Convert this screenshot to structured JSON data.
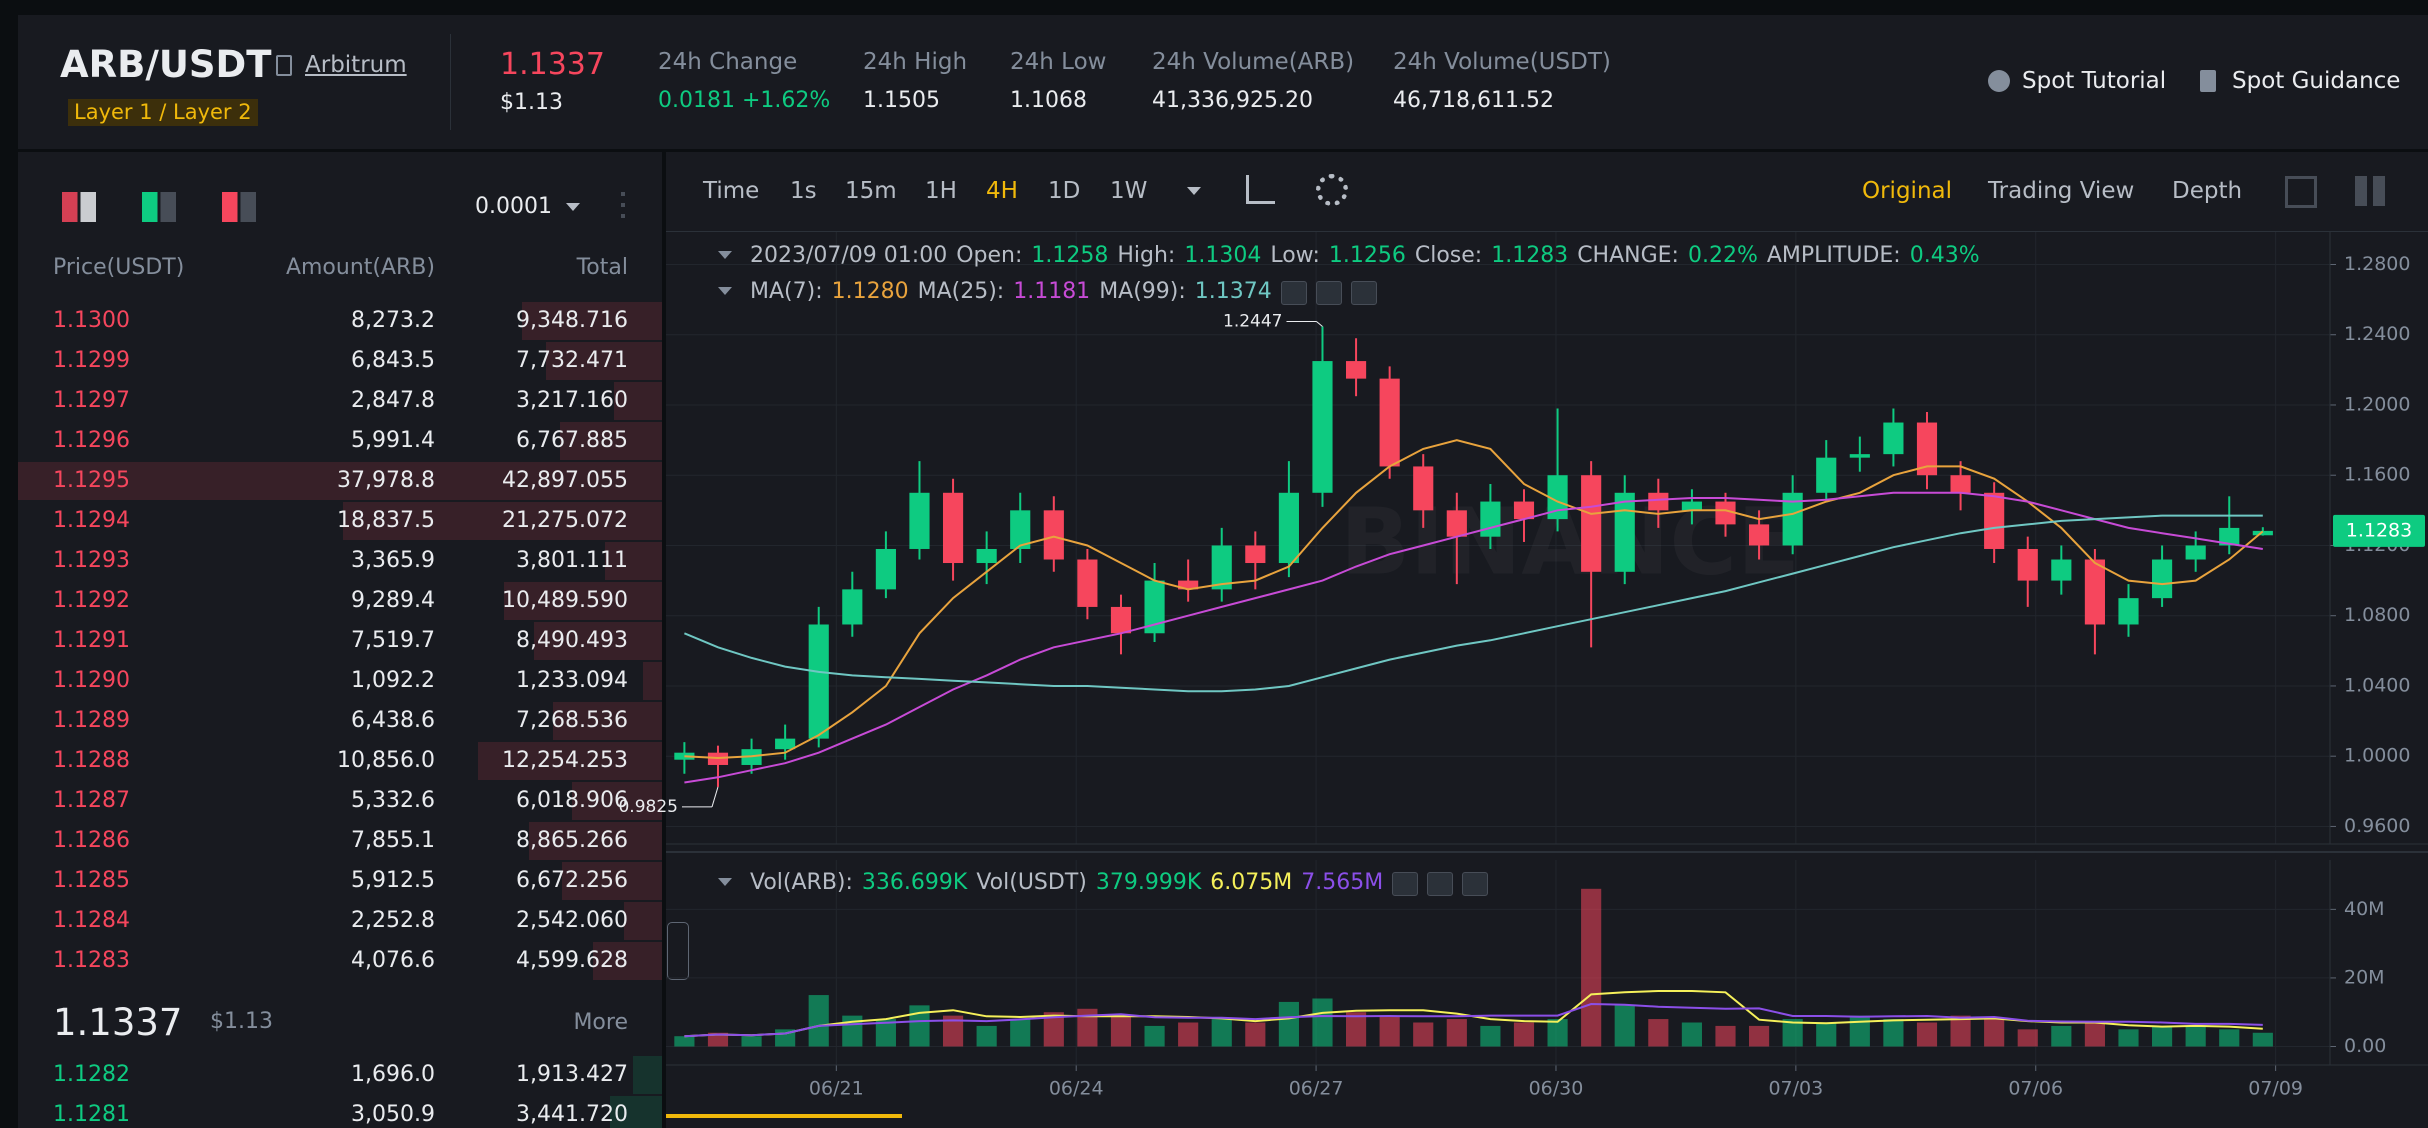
{
  "header": {
    "pair": "ARB/USDT",
    "network": "Arbitrum",
    "tag": "Layer 1 / Layer 2",
    "price": "1.1337",
    "price_usd": "$1.13",
    "stats": [
      {
        "label": "24h Change",
        "value": "0.0181 +1.62%",
        "value_color": "#0ecb81"
      },
      {
        "label": "24h High",
        "value": "1.1505"
      },
      {
        "label": "24h Low",
        "value": "1.1068"
      },
      {
        "label": "24h Volume(ARB)",
        "value": "41,336,925.20"
      },
      {
        "label": "24h Volume(USDT)",
        "value": "46,718,611.52"
      }
    ],
    "links": [
      "Spot Tutorial",
      "Spot Guidance"
    ]
  },
  "orderbook": {
    "precision": "0.0001",
    "columns": [
      "Price(USDT)",
      "Amount(ARB)",
      "Total"
    ],
    "asks": [
      [
        "1.1300",
        "8,273.2",
        "9,348.716"
      ],
      [
        "1.1299",
        "6,843.5",
        "7,732.471"
      ],
      [
        "1.1297",
        "2,847.8",
        "3,217.160"
      ],
      [
        "1.1296",
        "5,991.4",
        "6,767.885"
      ],
      [
        "1.1295",
        "37,978.8",
        "42,897.055"
      ],
      [
        "1.1294",
        "18,837.5",
        "21,275.072"
      ],
      [
        "1.1293",
        "3,365.9",
        "3,801.111"
      ],
      [
        "1.1292",
        "9,289.4",
        "10,489.590"
      ],
      [
        "1.1291",
        "7,519.7",
        "8,490.493"
      ],
      [
        "1.1290",
        "1,092.2",
        "1,233.094"
      ],
      [
        "1.1289",
        "6,438.6",
        "7,268.536"
      ],
      [
        "1.1288",
        "10,856.0",
        "12,254.253"
      ],
      [
        "1.1287",
        "5,332.6",
        "6,018.906"
      ],
      [
        "1.1286",
        "7,855.1",
        "8,865.266"
      ],
      [
        "1.1285",
        "5,912.5",
        "6,672.256"
      ],
      [
        "1.1284",
        "2,252.8",
        "2,542.060"
      ],
      [
        "1.1283",
        "4,076.6",
        "4,599.628"
      ]
    ],
    "mid": {
      "price": "1.1337",
      "usd": "$1.13",
      "more": "More"
    },
    "bids": [
      [
        "1.1282",
        "1,696.0",
        "1,913.427"
      ],
      [
        "1.1281",
        "3,050.9",
        "3,441.720"
      ]
    ]
  },
  "toolbar": {
    "intervals": [
      "Time",
      "1s",
      "15m",
      "1H",
      "4H",
      "1D",
      "1W"
    ],
    "active_interval": 4,
    "views": [
      "Original",
      "Trading View",
      "Depth"
    ],
    "active_view": 0
  },
  "info": {
    "ohlc": [
      {
        "text": "2023/07/09 01:00"
      },
      {
        "text": "Open:"
      },
      {
        "text": "1.1258",
        "color": "#0ecb81"
      },
      {
        "text": "High:"
      },
      {
        "text": "1.1304",
        "color": "#0ecb81"
      },
      {
        "text": "Low:"
      },
      {
        "text": "1.1256",
        "color": "#0ecb81"
      },
      {
        "text": "Close:"
      },
      {
        "text": "1.1283",
        "color": "#0ecb81"
      },
      {
        "text": "CHANGE:"
      },
      {
        "text": "0.22%",
        "color": "#0ecb81"
      },
      {
        "text": "AMPLITUDE:"
      },
      {
        "text": "0.43%",
        "color": "#0ecb81"
      }
    ],
    "ma": [
      {
        "text": "MA(7):"
      },
      {
        "text": "1.1280",
        "color": "#e8a33d"
      },
      {
        "text": "MA(25):"
      },
      {
        "text": "1.1181",
        "color": "#c74bd6"
      },
      {
        "text": "MA(99):"
      },
      {
        "text": "1.1374",
        "color": "#6fc7c3"
      }
    ],
    "vol": [
      {
        "text": "Vol(ARB):"
      },
      {
        "text": "336.699K",
        "color": "#0ecb81"
      },
      {
        "text": "Vol(USDT)"
      },
      {
        "text": "379.999K",
        "color": "#0ecb81"
      },
      {
        "text": "6.075M",
        "color": "#f5f05a"
      },
      {
        "text": "7.565M",
        "color": "#8b4fe8"
      }
    ]
  },
  "chart_data": [
    {
      "type": "candlestick",
      "watermark": "BINANCE",
      "up_color": "#0ecb81",
      "down_color": "#f6465d",
      "xlim": [
        18.87,
        39.68
      ],
      "xticks": [
        21,
        24,
        27,
        30,
        33,
        36,
        39
      ],
      "ylim": [
        0.95,
        1.2985
      ],
      "yticks": [
        {
          "value": 0.96,
          "label": "0.9600"
        },
        {
          "value": 1.0,
          "label": "1.0000"
        },
        {
          "value": 1.04,
          "label": "1.0400"
        },
        {
          "value": 1.08,
          "label": "1.0800"
        },
        {
          "value": 1.12,
          "label": "1.1200"
        },
        {
          "value": 1.16,
          "label": "1.1600"
        },
        {
          "value": 1.2,
          "label": "1.2000"
        },
        {
          "value": 1.24,
          "label": "1.2400"
        },
        {
          "value": 1.28,
          "label": "1.2800"
        }
      ],
      "grid": true,
      "x": [
        19.1,
        19.52,
        19.94,
        20.36,
        20.78,
        21.2,
        21.62,
        22.04,
        22.46,
        22.88,
        23.3,
        23.72,
        24.14,
        24.56,
        24.98,
        25.4,
        25.82,
        26.24,
        26.66,
        27.08,
        27.5,
        27.92,
        28.34,
        28.76,
        29.18,
        29.6,
        30.02,
        30.44,
        30.86,
        31.28,
        31.7,
        32.12,
        32.54,
        32.96,
        33.38,
        33.8,
        34.22,
        34.64,
        35.06,
        35.48,
        35.9,
        36.32,
        36.74,
        37.16,
        37.58,
        38.0,
        38.42,
        38.84
      ],
      "open": [
        0.998,
        1.002,
        0.995,
        1.004,
        1.01,
        1.075,
        1.095,
        1.118,
        1.15,
        1.11,
        1.118,
        1.14,
        1.112,
        1.085,
        1.07,
        1.1,
        1.095,
        1.12,
        1.11,
        1.15,
        1.225,
        1.215,
        1.165,
        1.14,
        1.125,
        1.145,
        1.135,
        1.16,
        1.105,
        1.15,
        1.14,
        1.145,
        1.132,
        1.12,
        1.15,
        1.17,
        1.172,
        1.19,
        1.16,
        1.15,
        1.118,
        1.1,
        1.112,
        1.075,
        1.09,
        1.112,
        1.12,
        1.1258
      ],
      "high": [
        1.008,
        1.006,
        1.01,
        1.018,
        1.085,
        1.105,
        1.128,
        1.168,
        1.158,
        1.128,
        1.15,
        1.148,
        1.118,
        1.092,
        1.11,
        1.112,
        1.13,
        1.128,
        1.168,
        1.2447,
        1.238,
        1.222,
        1.172,
        1.15,
        1.155,
        1.152,
        1.198,
        1.168,
        1.16,
        1.158,
        1.152,
        1.15,
        1.14,
        1.16,
        1.18,
        1.182,
        1.198,
        1.196,
        1.168,
        1.156,
        1.125,
        1.12,
        1.118,
        1.098,
        1.12,
        1.128,
        1.148,
        1.1304
      ],
      "low": [
        0.99,
        0.9825,
        0.99,
        0.998,
        1.005,
        1.068,
        1.09,
        1.112,
        1.1,
        1.098,
        1.11,
        1.105,
        1.078,
        1.058,
        1.065,
        1.088,
        1.088,
        1.095,
        1.102,
        1.142,
        1.205,
        1.158,
        1.13,
        1.098,
        1.118,
        1.122,
        1.128,
        1.062,
        1.098,
        1.13,
        1.132,
        1.125,
        1.112,
        1.115,
        1.145,
        1.162,
        1.165,
        1.152,
        1.14,
        1.11,
        1.085,
        1.092,
        1.058,
        1.068,
        1.085,
        1.105,
        1.115,
        1.1256
      ],
      "close": [
        1.002,
        0.995,
        1.004,
        1.01,
        1.075,
        1.095,
        1.118,
        1.15,
        1.11,
        1.118,
        1.14,
        1.112,
        1.085,
        1.07,
        1.1,
        1.095,
        1.12,
        1.11,
        1.15,
        1.225,
        1.215,
        1.165,
        1.14,
        1.125,
        1.145,
        1.135,
        1.16,
        1.105,
        1.15,
        1.14,
        1.145,
        1.132,
        1.12,
        1.15,
        1.17,
        1.172,
        1.19,
        1.16,
        1.15,
        1.118,
        1.1,
        1.112,
        1.075,
        1.09,
        1.112,
        1.12,
        1.13,
        1.1283
      ],
      "series": [
        {
          "color": "#e8a33d",
          "values": [
            1.0,
            0.999,
            1.0,
            1.002,
            1.012,
            1.025,
            1.04,
            1.07,
            1.09,
            1.105,
            1.12,
            1.125,
            1.12,
            1.11,
            1.1,
            1.095,
            1.098,
            1.1,
            1.108,
            1.13,
            1.15,
            1.165,
            1.175,
            1.18,
            1.175,
            1.155,
            1.145,
            1.138,
            1.14,
            1.138,
            1.14,
            1.14,
            1.135,
            1.138,
            1.145,
            1.15,
            1.16,
            1.165,
            1.165,
            1.158,
            1.145,
            1.13,
            1.11,
            1.1,
            1.098,
            1.1,
            1.112,
            1.128
          ]
        },
        {
          "color": "#c74bd6",
          "values": [
            0.985,
            0.988,
            0.992,
            0.996,
            1.002,
            1.01,
            1.018,
            1.028,
            1.038,
            1.046,
            1.055,
            1.062,
            1.066,
            1.07,
            1.075,
            1.08,
            1.085,
            1.09,
            1.095,
            1.1,
            1.108,
            1.115,
            1.12,
            1.125,
            1.13,
            1.135,
            1.14,
            1.142,
            1.145,
            1.146,
            1.147,
            1.147,
            1.146,
            1.145,
            1.146,
            1.148,
            1.15,
            1.15,
            1.15,
            1.148,
            1.145,
            1.14,
            1.135,
            1.13,
            1.127,
            1.124,
            1.121,
            1.118
          ]
        },
        {
          "color": "#6fc7c3",
          "values": [
            1.07,
            1.062,
            1.056,
            1.051,
            1.048,
            1.046,
            1.045,
            1.044,
            1.043,
            1.042,
            1.041,
            1.04,
            1.04,
            1.039,
            1.038,
            1.037,
            1.037,
            1.038,
            1.04,
            1.045,
            1.05,
            1.055,
            1.059,
            1.063,
            1.066,
            1.07,
            1.074,
            1.078,
            1.082,
            1.086,
            1.09,
            1.094,
            1.099,
            1.104,
            1.109,
            1.114,
            1.119,
            1.123,
            1.127,
            1.13,
            1.132,
            1.134,
            1.135,
            1.136,
            1.137,
            1.137,
            1.137,
            1.137
          ]
        }
      ],
      "annotations": [
        {
          "value": 1.2447,
          "label": "1.2447"
        },
        {
          "value": 0.9825,
          "label": "0.9825"
        }
      ],
      "last_price": {
        "value": 1.1283,
        "label": "1.1283",
        "color": "#0ecb81"
      }
    },
    {
      "type": "volume",
      "xlim": [
        18.87,
        39.68
      ],
      "xticks": [
        {
          "value": 21,
          "label": "06/21"
        },
        {
          "value": 24,
          "label": "06/24"
        },
        {
          "value": 27,
          "label": "06/27"
        },
        {
          "value": 30,
          "label": "06/30"
        },
        {
          "value": 33,
          "label": "07/03"
        },
        {
          "value": 36,
          "label": "07/06"
        },
        {
          "value": 39,
          "label": "07/09"
        }
      ],
      "ylim": [
        -5.4,
        54.4
      ],
      "yticks": [
        {
          "value": 0,
          "label": "0.00"
        },
        {
          "value": 20,
          "label": "20M"
        },
        {
          "value": 40,
          "label": "40M"
        }
      ],
      "values": [
        3,
        4,
        3,
        5,
        15,
        9,
        8,
        12,
        9,
        6,
        8,
        10,
        11,
        9,
        6,
        7,
        8,
        7,
        13,
        14,
        10,
        9,
        7,
        8,
        6,
        7,
        8,
        46,
        12,
        8,
        7,
        6,
        6,
        8,
        7,
        9,
        8,
        7,
        9,
        8,
        5,
        6,
        7,
        5,
        6,
        6,
        5,
        4
      ],
      "series": [
        {
          "color": "#f5f05a",
          "values": [
            3,
            3.5,
            3.3,
            3.8,
            6,
            7.2,
            8,
            9.8,
            10.6,
            8.8,
            8.6,
            9,
            8.8,
            8.8,
            8.8,
            8.6,
            8.2,
            7.4,
            8.2,
            9.8,
            10.4,
            10.6,
            10.6,
            9.6,
            8,
            7.4,
            7.2,
            15.2,
            15.8,
            16.2,
            16.2,
            15.8,
            7.8,
            7,
            6.8,
            7.2,
            7.6,
            7.8,
            8,
            8.2,
            7.4,
            7,
            7,
            6.2,
            5.8,
            6,
            5.8,
            5.2
          ]
        },
        {
          "color": "#8b4fe8",
          "values": [
            3,
            3.5,
            3.3,
            3.8,
            6,
            6.5,
            6.9,
            7.4,
            7.6,
            7.4,
            7.9,
            8.5,
            9,
            9.4,
            8.5,
            8.4,
            8.4,
            8,
            8.5,
            8.9,
            8.8,
            8.9,
            8.8,
            8.8,
            9,
            9,
            9,
            12.4,
            12.2,
            11.6,
            11.3,
            11,
            11.1,
            8.9,
            8.9,
            8.7,
            8.8,
            8.9,
            8.4,
            8.6,
            7.5,
            7.3,
            7.2,
            7.2,
            7,
            6.6,
            6.6,
            6.3
          ]
        }
      ]
    }
  ]
}
